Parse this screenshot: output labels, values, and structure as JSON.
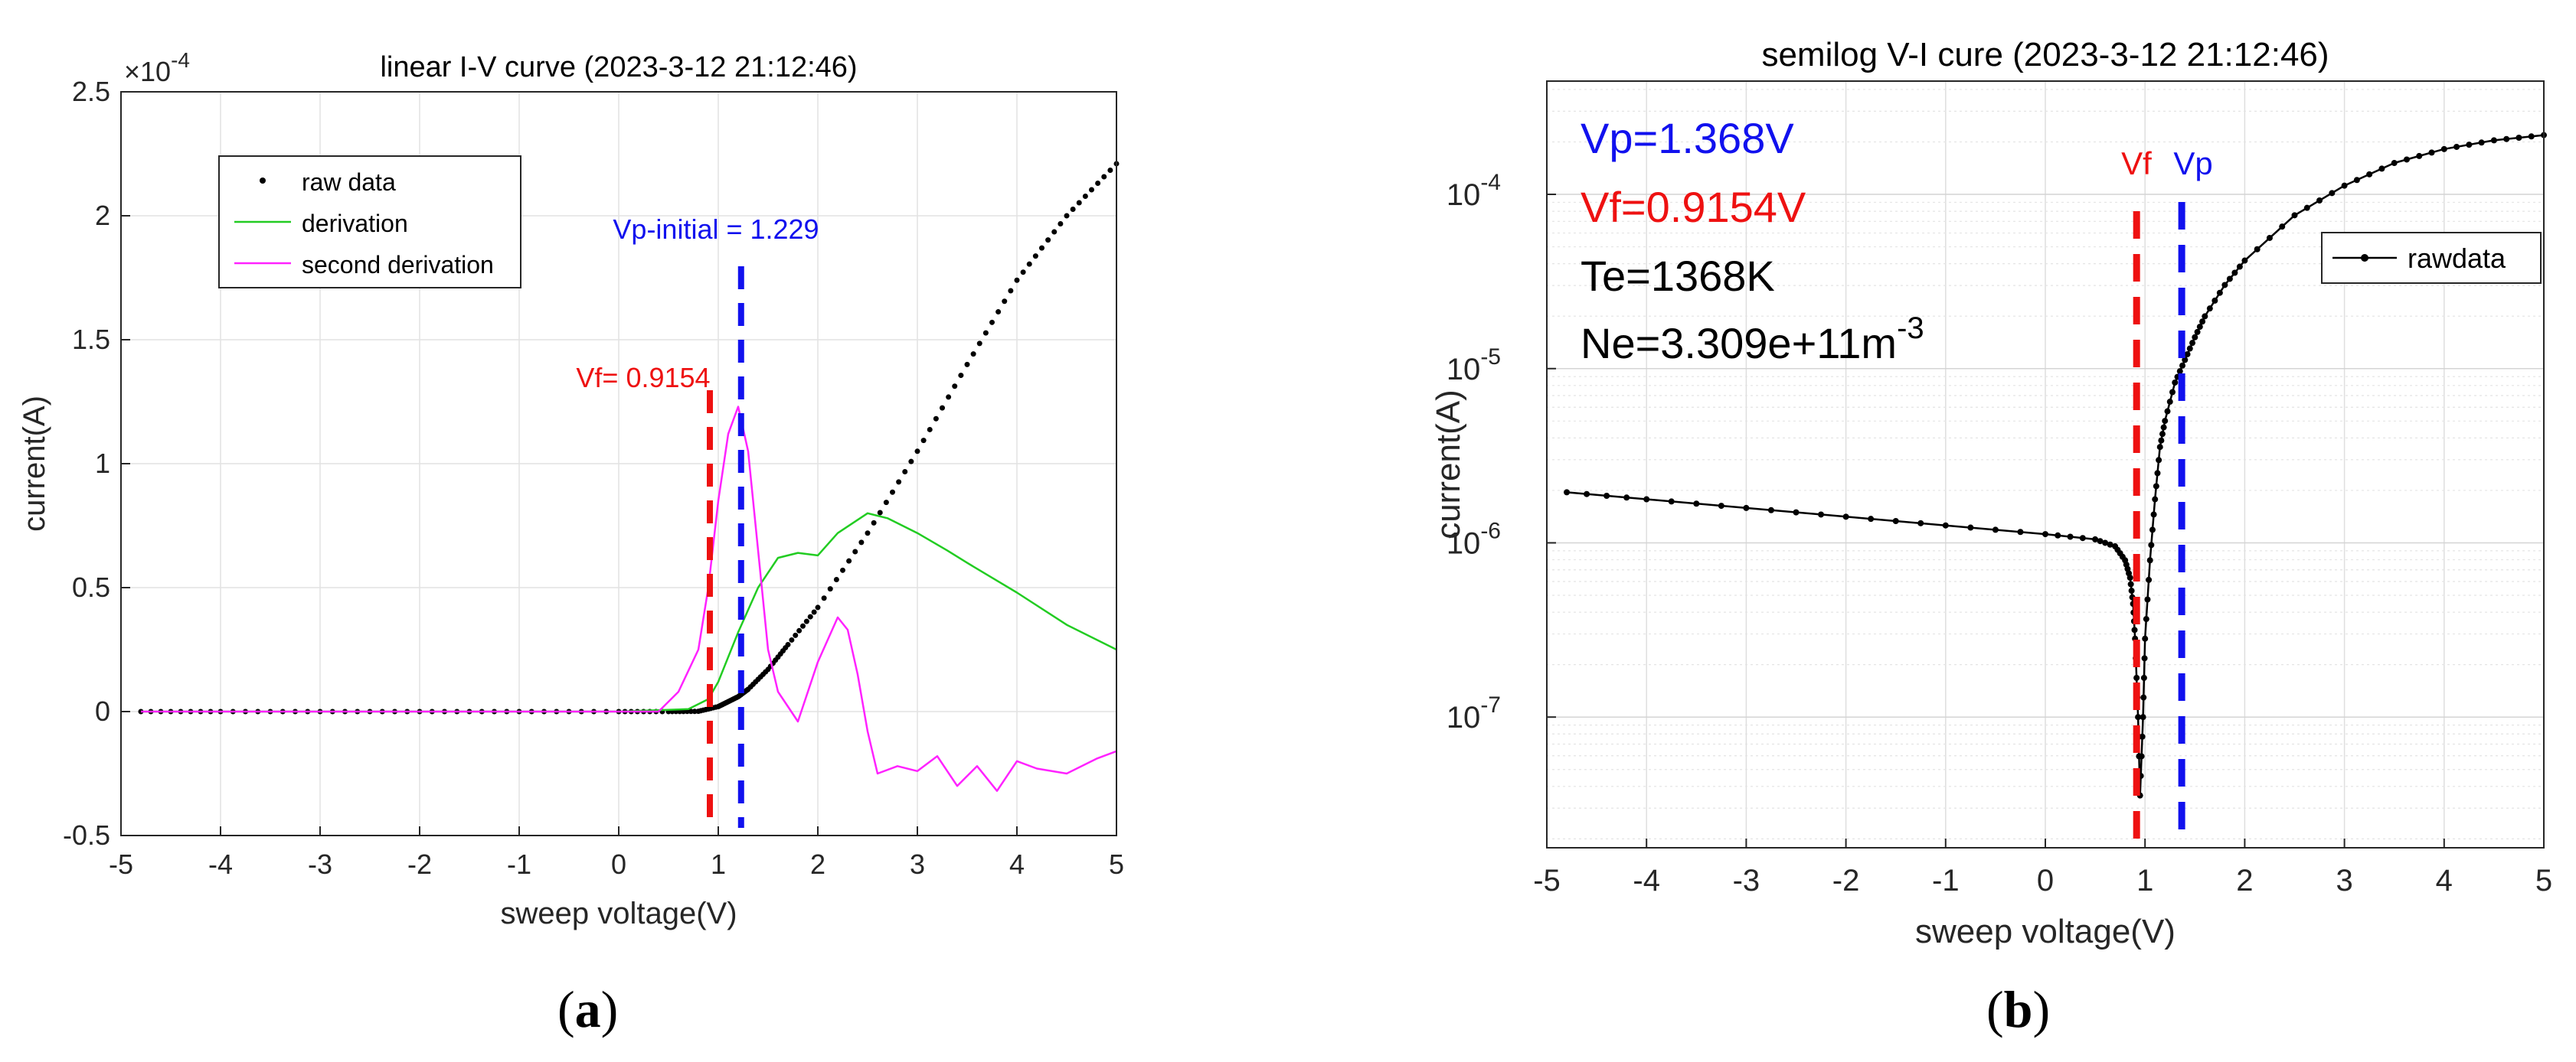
{
  "chart_data": [
    {
      "type": "line",
      "title": "linear I-V curve (2023-3-12 21:12:46)",
      "xlabel": "sweep voltage(V)",
      "ylabel": "current(A)",
      "xlim": [
        -5,
        5
      ],
      "ylim": [
        -0.5,
        2.5
      ],
      "y_exponent_label": "×10",
      "y_exponent": "-4",
      "xticks": [
        "-5",
        "-4",
        "-3",
        "-2",
        "-1",
        "0",
        "1",
        "2",
        "3",
        "4",
        "5"
      ],
      "yticks": [
        "-0.5",
        "0",
        "0.5",
        "1",
        "1.5",
        "2",
        "2.5"
      ],
      "grid": true,
      "legend": {
        "position": "upper-left",
        "entries": [
          "raw data",
          "derivation",
          "second derivation"
        ]
      },
      "series": [
        {
          "name": "raw data",
          "style": "dots",
          "color": "#000000",
          "x": [
            -4.8,
            -4.0,
            -3.0,
            -2.0,
            -1.0,
            0.0,
            0.5,
            0.8,
            1.0,
            1.1,
            1.2,
            1.3,
            1.5,
            1.7,
            2.0,
            2.5,
            3.0,
            3.5,
            4.0,
            4.5,
            5.0
          ],
          "y": [
            0,
            0,
            0,
            0,
            0,
            0,
            0,
            0.001,
            0.02,
            0.04,
            0.06,
            0.09,
            0.17,
            0.27,
            0.42,
            0.72,
            1.05,
            1.4,
            1.74,
            2.0,
            2.21
          ]
        },
        {
          "name": "derivation",
          "style": "line",
          "color": "#22cc22",
          "x": [
            -4.8,
            -3.0,
            -1.0,
            0.0,
            0.7,
            0.9,
            1.0,
            1.2,
            1.4,
            1.6,
            1.8,
            2.0,
            2.2,
            2.5,
            2.7,
            3.0,
            3.3,
            3.5,
            4.0,
            4.5,
            5.0
          ],
          "y": [
            0,
            0,
            0,
            0,
            0.01,
            0.05,
            0.12,
            0.32,
            0.5,
            0.62,
            0.64,
            0.63,
            0.72,
            0.8,
            0.78,
            0.72,
            0.65,
            0.6,
            0.48,
            0.35,
            0.25
          ]
        },
        {
          "name": "second derivation",
          "style": "line",
          "color": "#ff22ff",
          "x": [
            -4.8,
            -3.0,
            -1.0,
            0.0,
            0.4,
            0.6,
            0.8,
            0.9,
            1.0,
            1.1,
            1.2,
            1.3,
            1.4,
            1.5,
            1.6,
            1.7,
            1.8,
            2.0,
            2.2,
            2.3,
            2.4,
            2.5,
            2.6,
            2.8,
            3.0,
            3.2,
            3.4,
            3.6,
            3.8,
            4.0,
            4.2,
            4.5,
            4.8,
            5.0
          ],
          "y": [
            0,
            0,
            0,
            0,
            0,
            0.08,
            0.25,
            0.5,
            0.85,
            1.12,
            1.23,
            1.05,
            0.65,
            0.25,
            0.08,
            0.02,
            -0.04,
            0.2,
            0.38,
            0.33,
            0.15,
            -0.08,
            -0.25,
            -0.22,
            -0.24,
            -0.18,
            -0.3,
            -0.22,
            -0.32,
            -0.2,
            -0.23,
            -0.25,
            -0.19,
            -0.16
          ]
        }
      ],
      "vlines": [
        {
          "x": 0.9154,
          "color": "#ee1111",
          "label": "Vf= 0.9154"
        },
        {
          "x": 1.229,
          "color": "#1111ee",
          "label": "Vp-initial = 1.229"
        }
      ]
    },
    {
      "type": "line",
      "yscale": "log",
      "title": "semilog V-I cure (2023-3-12 21:12:46)",
      "xlabel": "sweep voltage(V)",
      "ylabel": "current(A)",
      "xlim": [
        -5,
        5
      ],
      "ylim_log10": [
        -7.75,
        -3.35
      ],
      "xticks": [
        "-5",
        "-4",
        "-3",
        "-2",
        "-1",
        "0",
        "1",
        "2",
        "3",
        "4",
        "5"
      ],
      "yticks": [
        {
          "base": "10",
          "exp": "-7",
          "log10": -7
        },
        {
          "base": "10",
          "exp": "-6",
          "log10": -6
        },
        {
          "base": "10",
          "exp": "-5",
          "log10": -5
        },
        {
          "base": "10",
          "exp": "-4",
          "log10": -4
        }
      ],
      "grid": true,
      "legend": {
        "position": "upper-right",
        "entries": [
          "rawdata"
        ]
      },
      "series": [
        {
          "name": "rawdata",
          "style": "line-dots",
          "color": "#000000",
          "x": [
            -4.8,
            -4.0,
            -3.0,
            -2.0,
            -1.0,
            0.0,
            0.5,
            0.7,
            0.8,
            0.85,
            0.88,
            0.9,
            0.93,
            0.95,
            0.98,
            1.0,
            1.05,
            1.1,
            1.15,
            1.2,
            1.3,
            1.4,
            1.5,
            1.6,
            1.8,
            2.0,
            2.5,
            3.0,
            3.5,
            4.0,
            4.5,
            5.0
          ],
          "y_log10": [
            -5.71,
            -5.75,
            -5.8,
            -5.85,
            -5.9,
            -5.95,
            -5.98,
            -6.02,
            -6.1,
            -6.2,
            -6.35,
            -6.55,
            -7.0,
            -7.45,
            -7.0,
            -6.55,
            -6.1,
            -5.75,
            -5.45,
            -5.3,
            -5.08,
            -4.95,
            -4.82,
            -4.7,
            -4.52,
            -4.38,
            -4.12,
            -3.95,
            -3.82,
            -3.74,
            -3.69,
            -3.66
          ]
        }
      ],
      "vlines": [
        {
          "x": 0.9154,
          "color": "#ee1111",
          "label": "Vf"
        },
        {
          "x": 1.368,
          "color": "#1111ee",
          "label": "Vp"
        }
      ],
      "annotations": [
        {
          "name": "vp",
          "text": "Vp=1.368V",
          "color": "#1111ee"
        },
        {
          "name": "vf",
          "text": "Vf=0.9154V",
          "color": "#ee1111"
        },
        {
          "name": "te",
          "text": "Te=1368K",
          "color": "#000000"
        },
        {
          "name": "ne",
          "text": "Ne=3.309e+11m",
          "sup": "-3",
          "color": "#000000"
        }
      ]
    }
  ],
  "captions": {
    "a": "a",
    "b": "b"
  }
}
